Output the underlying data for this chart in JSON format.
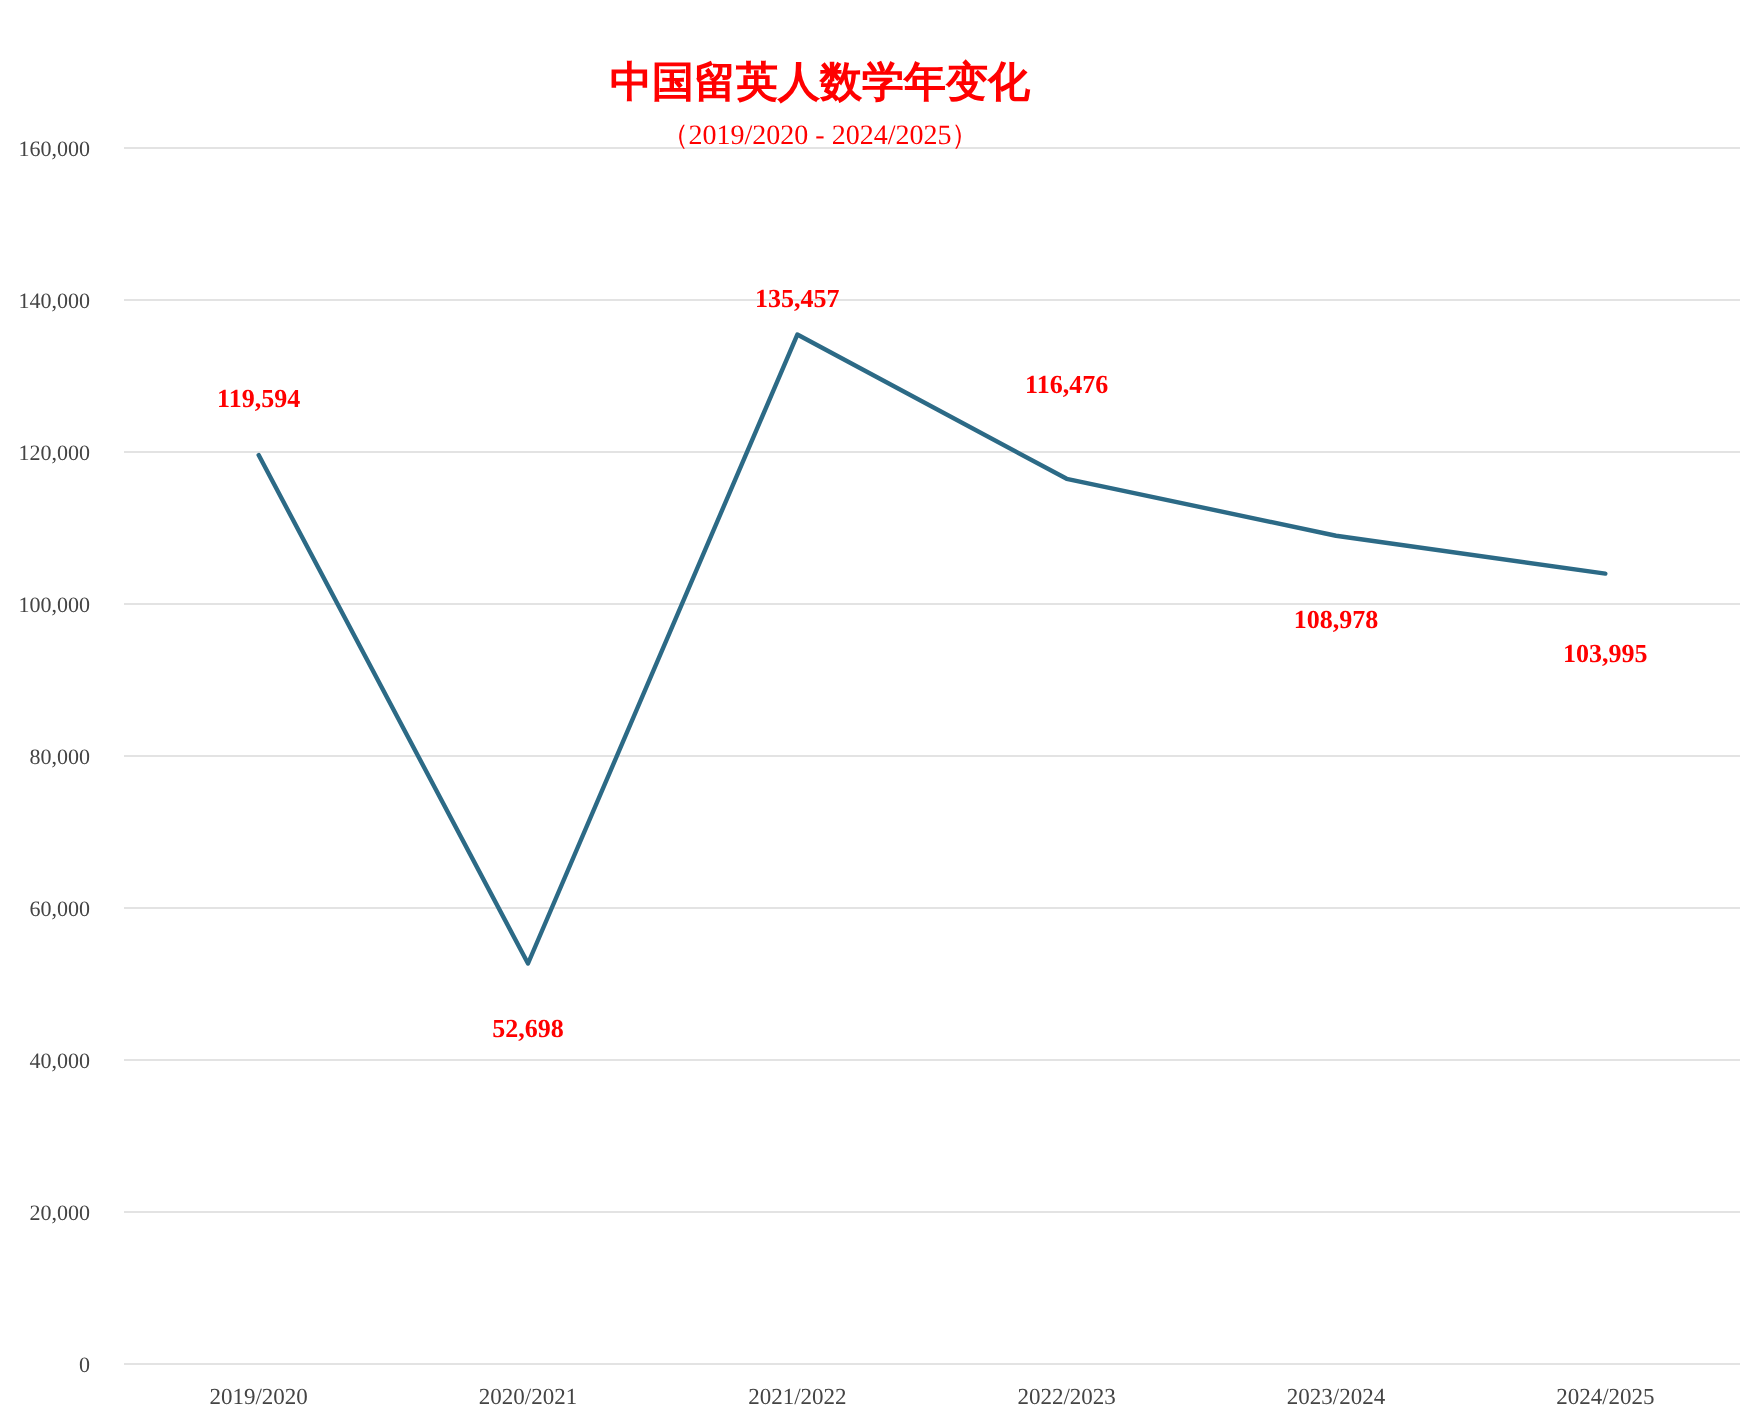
{
  "chart_data": {
    "type": "line",
    "title": "中国留英人数学年变化",
    "subtitle": "（2019/2020 - 2024/2025）",
    "categories": [
      "2019/2020",
      "2020/2021",
      "2021/2022",
      "2022/2023",
      "2023/2024",
      "2024/2025"
    ],
    "series": [
      {
        "color": "#2c6a86",
        "values": [
          119594,
          52698,
          135457,
          116476,
          108978,
          103995
        ],
        "value_labels": [
          "119,594",
          "52,698",
          "135,457",
          "116,476",
          "108,978",
          "103,995"
        ]
      }
    ],
    "ylim": [
      0,
      160000
    ],
    "yticks": [
      {
        "value": 0,
        "label": "0"
      },
      {
        "value": 20000,
        "label": "20,000"
      },
      {
        "value": 40000,
        "label": "40,000"
      },
      {
        "value": 60000,
        "label": "60,000"
      },
      {
        "value": 80000,
        "label": "80,000"
      },
      {
        "value": 100000,
        "label": "100,000"
      },
      {
        "value": 120000,
        "label": "120,000"
      },
      {
        "value": 140000,
        "label": "140,000"
      },
      {
        "value": 160000,
        "label": "160,000"
      }
    ],
    "grid": "y",
    "marker": "none",
    "line_style": "solid"
  }
}
